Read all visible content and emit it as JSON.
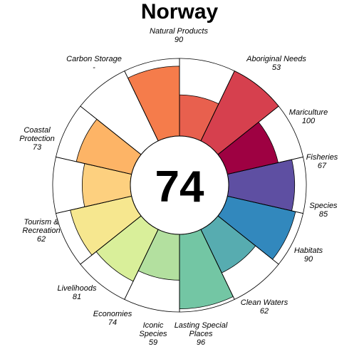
{
  "chart_data": {
    "type": "pie",
    "title": "Norway",
    "center_value": "74",
    "max_value": 100,
    "petals": [
      {
        "lines": [
          "Natural Products"
        ],
        "score": "90",
        "value": 90,
        "color": "#F57C4B"
      },
      {
        "lines": [
          "Aboriginal Needs"
        ],
        "score": "53",
        "value": 53,
        "color": "#E8604E"
      },
      {
        "lines": [
          "Mariculture"
        ],
        "score": "100",
        "value": 100,
        "color": "#D6404E"
      },
      {
        "lines": [
          "Fisheries"
        ],
        "score": "67",
        "value": 67,
        "color": "#9E0142"
      },
      {
        "lines": [
          "Species"
        ],
        "score": "85",
        "value": 85,
        "color": "#5E4FA2"
      },
      {
        "lines": [
          "Habitats"
        ],
        "score": "90",
        "value": 90,
        "color": "#3288BD"
      },
      {
        "lines": [
          "Clean Waters"
        ],
        "score": "62",
        "value": 62,
        "color": "#57ACB0"
      },
      {
        "lines": [
          "Lasting Special",
          "Places"
        ],
        "score": "96",
        "value": 96,
        "color": "#73C6A4"
      },
      {
        "lines": [
          "Iconic",
          "Species"
        ],
        "score": "59",
        "value": 59,
        "color": "#B3E09F"
      },
      {
        "lines": [
          "Economies"
        ],
        "score": "74",
        "value": 74,
        "color": "#D9EF9A"
      },
      {
        "lines": [
          "Livelihoods"
        ],
        "score": "81",
        "value": 81,
        "color": "#F6E78F"
      },
      {
        "lines": [
          "Tourism &",
          "Recreation"
        ],
        "score": "62",
        "value": 62,
        "color": "#FDD07F"
      },
      {
        "lines": [
          "Coastal",
          "Protection"
        ],
        "score": "73",
        "value": 73,
        "color": "#FDB466"
      },
      {
        "lines": [
          "Carbon Storage"
        ],
        "score": "-",
        "value": null,
        "color": "#F7A35A"
      }
    ]
  }
}
